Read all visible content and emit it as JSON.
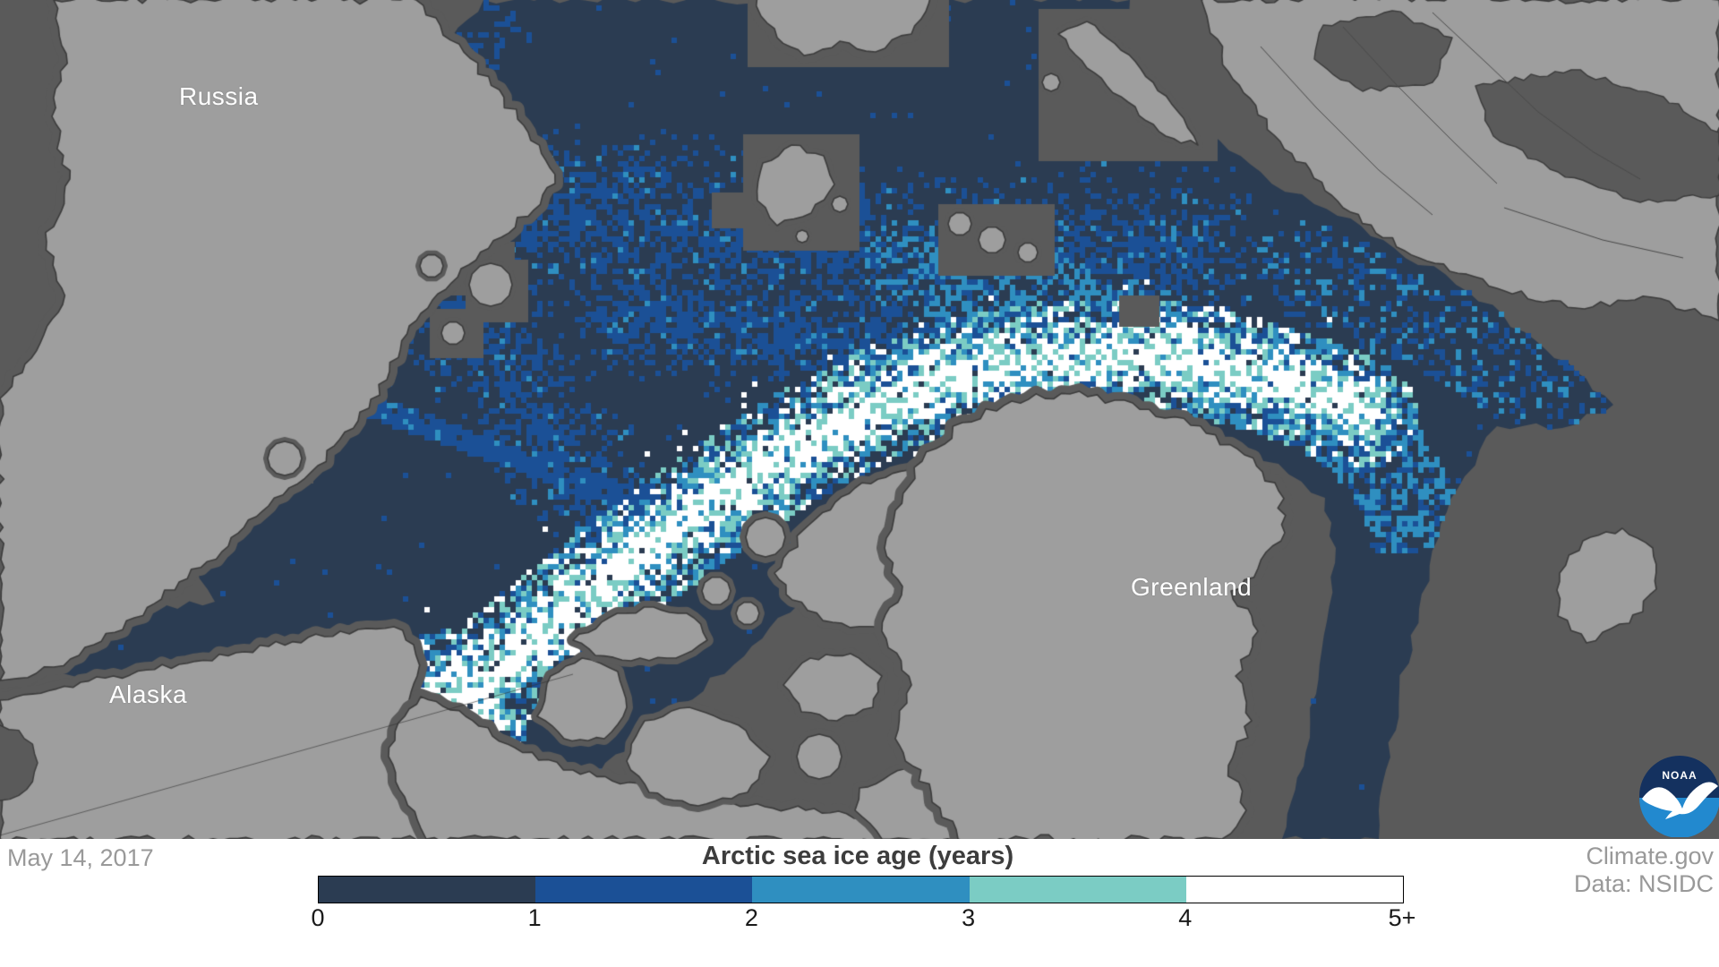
{
  "map": {
    "region_labels": [
      {
        "text": "Russia"
      },
      {
        "text": "Alaska"
      },
      {
        "text": "Greenland"
      }
    ],
    "palette": {
      "ocean": "#5a5a5a",
      "land": "#9e9e9e",
      "land_outline": "#3c3c3c",
      "border_line": "#4a4a4a",
      "age_1": "#2b3c52",
      "age_2": "#1b5096",
      "age_3": "#2f8fc0",
      "age_4": "#7bccc4",
      "age_5": "#ffffff",
      "label_text": "#ffffff",
      "footer_text_gray": "#999999",
      "title_text": "#3d3d3d"
    },
    "logo": {
      "name": "NOAA",
      "top_color": "#14315f",
      "bottom_color": "#2289cf"
    }
  },
  "footer": {
    "date": "May 14, 2017",
    "source": "Climate.gov",
    "data_credit": "Data: NSIDC"
  },
  "chart_data": {
    "type": "heatmap",
    "title": "Arctic sea ice age (years)",
    "date": "May 14, 2017",
    "legend": {
      "title": "Arctic sea ice age (years)",
      "tick_labels": [
        "0",
        "1",
        "2",
        "3",
        "4",
        "5+"
      ],
      "bins": [
        {
          "range": "0-1",
          "color": "#2b3c52"
        },
        {
          "range": "1-2",
          "color": "#1b5096"
        },
        {
          "range": "2-3",
          "color": "#2f8fc0"
        },
        {
          "range": "3-4",
          "color": "#7bccc4"
        },
        {
          "range": "4-5+",
          "color": "#ffffff"
        }
      ]
    },
    "notes": "Gridded map of Arctic sea ice age; dark navy = first-year ice filling most of the Arctic basin, blue = 2nd year, steel blue = 3rd year, teal = 4th year, white = 5+ year ice concentrated in a band along the Canadian Archipelago and north of Greenland exporting through Fram Strait; remnant old-ice patch in the Beaufort Sea."
  }
}
